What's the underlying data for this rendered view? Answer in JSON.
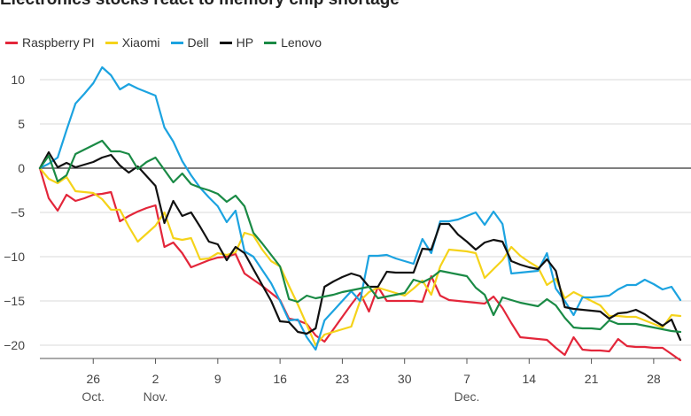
{
  "chart_data": {
    "type": "line",
    "title": "Electronics stocks react to memory chip shortage",
    "xlabel": "",
    "ylabel": "",
    "ylim": [
      -21.5,
      12
    ],
    "yticks": [
      10,
      5,
      0,
      -5,
      -10,
      -15,
      -20
    ],
    "xlim": [
      "2021-10-20",
      "2021-12-31"
    ],
    "xticks": [
      {
        "date": "2021-10-26",
        "label": "26",
        "month": "Oct."
      },
      {
        "date": "2021-11-02",
        "label": "2",
        "month": "Nov."
      },
      {
        "date": "2021-11-09",
        "label": "9",
        "month": ""
      },
      {
        "date": "2021-11-16",
        "label": "16",
        "month": ""
      },
      {
        "date": "2021-11-23",
        "label": "23",
        "month": ""
      },
      {
        "date": "2021-11-30",
        "label": "30",
        "month": ""
      },
      {
        "date": "2021-12-07",
        "label": "7",
        "month": "Dec."
      },
      {
        "date": "2021-12-14",
        "label": "14",
        "month": ""
      },
      {
        "date": "2021-12-21",
        "label": "21",
        "month": ""
      },
      {
        "date": "2021-12-28",
        "label": "28",
        "month": ""
      }
    ],
    "legend_position": "top-left",
    "grid": "horizontal",
    "x": [
      "2021-10-20",
      "2021-10-21",
      "2021-10-22",
      "2021-10-23",
      "2021-10-24",
      "2021-10-25",
      "2021-10-26",
      "2021-10-27",
      "2021-10-28",
      "2021-10-29",
      "2021-10-30",
      "2021-10-31",
      "2021-11-01",
      "2021-11-02",
      "2021-11-03",
      "2021-11-04",
      "2021-11-05",
      "2021-11-06",
      "2021-11-07",
      "2021-11-08",
      "2021-11-09",
      "2021-11-10",
      "2021-11-11",
      "2021-11-12",
      "2021-11-13",
      "2021-11-14",
      "2021-11-15",
      "2021-11-16",
      "2021-11-17",
      "2021-11-18",
      "2021-11-19",
      "2021-11-20",
      "2021-11-21",
      "2021-11-22",
      "2021-11-23",
      "2021-11-24",
      "2021-11-25",
      "2021-11-26",
      "2021-11-27",
      "2021-11-28",
      "2021-11-29",
      "2021-11-30",
      "2021-12-01",
      "2021-12-02",
      "2021-12-03",
      "2021-12-04",
      "2021-12-05",
      "2021-12-06",
      "2021-12-07",
      "2021-12-08",
      "2021-12-09",
      "2021-12-10",
      "2021-12-11",
      "2021-12-12",
      "2021-12-13",
      "2021-12-14",
      "2021-12-15",
      "2021-12-16",
      "2021-12-17",
      "2021-12-18",
      "2021-12-19",
      "2021-12-20",
      "2021-12-21",
      "2021-12-22",
      "2021-12-23",
      "2021-12-24",
      "2021-12-25",
      "2021-12-26",
      "2021-12-27",
      "2021-12-28",
      "2021-12-29",
      "2021-12-30",
      "2021-12-31"
    ],
    "series": [
      {
        "name": "Raspberry PI",
        "color": "#e3263a",
        "values": [
          0,
          -3.4,
          -4.8,
          -3.0,
          -3.7,
          -3.4,
          -3.0,
          -2.9,
          -2.7,
          -6.0,
          -5.4,
          -4.9,
          -4.5,
          -4.2,
          -8.9,
          -8.4,
          -9.6,
          -11.2,
          -10.8,
          -10.4,
          -10.1,
          -10.0,
          -9.7,
          -11.9,
          -12.6,
          -13.3,
          -14.1,
          -14.9,
          -17.0,
          -17.2,
          -17.6,
          -18.9,
          -19.6,
          -18.2,
          -16.8,
          -15.4,
          -14.1,
          -16.2,
          -13.4,
          -15.0,
          -15.0,
          -15.0,
          -15.0,
          -15.1,
          -12.2,
          -14.4,
          -14.9,
          -15.0,
          -15.1,
          -15.2,
          -15.3,
          -14.5,
          -15.8,
          -17.5,
          -19.1,
          -19.2,
          -19.3,
          -19.4,
          -20.3,
          -21.1,
          -19.1,
          -20.5,
          -20.6,
          -20.6,
          -20.7,
          -19.3,
          -20.1,
          -20.2,
          -20.2,
          -20.3,
          -20.3,
          -21.0,
          -21.7
        ]
      },
      {
        "name": "Xiaomi",
        "color": "#f5d31a",
        "values": [
          0,
          -1.2,
          -1.7,
          -1.0,
          -2.6,
          -2.7,
          -2.8,
          -3.5,
          -4.7,
          -4.7,
          -6.6,
          -8.3,
          -7.4,
          -6.5,
          -5.0,
          -7.9,
          -8.1,
          -7.9,
          -10.3,
          -10.2,
          -9.6,
          -9.8,
          -9.5,
          -7.3,
          -7.6,
          -9.2,
          -10.5,
          -11.1,
          -13.3,
          -15.4,
          -17.7,
          -20.0,
          -18.8,
          -18.5,
          -18.2,
          -17.9,
          -15.0,
          -14.0,
          -13.5,
          -13.8,
          -14.1,
          -14.4,
          -13.6,
          -12.7,
          -14.3,
          -11.1,
          -9.2,
          -9.3,
          -9.4,
          -9.6,
          -12.4,
          -11.4,
          -10.4,
          -8.9,
          -9.9,
          -10.6,
          -11.2,
          -13.2,
          -12.5,
          -14.7,
          -14.0,
          -14.5,
          -15.0,
          -15.5,
          -16.7,
          -16.7,
          -16.8,
          -16.8,
          -17.2,
          -17.6,
          -18.0,
          -16.6,
          -16.7
        ]
      },
      {
        "name": "Dell",
        "color": "#1ca3e0",
        "values": [
          0,
          0.5,
          1.2,
          4.3,
          7.3,
          8.4,
          9.6,
          11.4,
          10.5,
          8.9,
          9.5,
          9.0,
          8.6,
          8.2,
          4.6,
          3.0,
          0.8,
          -0.8,
          -2.2,
          -3.3,
          -4.3,
          -6.1,
          -4.8,
          -9.4,
          -10.0,
          -11.5,
          -13.0,
          -15.0,
          -17.2,
          -17.1,
          -19.1,
          -20.5,
          -17.2,
          -16.1,
          -15.0,
          -13.9,
          -15.0,
          -9.9,
          -9.9,
          -9.8,
          -10.2,
          -10.5,
          -10.8,
          -8.0,
          -9.6,
          -6.0,
          -6.0,
          -5.8,
          -5.4,
          -5.0,
          -6.4,
          -4.9,
          -6.3,
          -11.9,
          -11.8,
          -11.7,
          -11.6,
          -9.6,
          -13.6,
          -15.0,
          -16.6,
          -14.6,
          -14.6,
          -14.5,
          -14.4,
          -13.7,
          -13.2,
          -13.2,
          -12.6,
          -13.1,
          -13.7,
          -13.4,
          -14.9
        ]
      },
      {
        "name": "HP",
        "color": "#111111",
        "values": [
          0,
          1.8,
          0.1,
          0.6,
          0.1,
          0.4,
          0.7,
          1.2,
          1.5,
          0.3,
          -0.5,
          0.2,
          -0.9,
          -2.0,
          -6.2,
          -3.7,
          -5.4,
          -5.0,
          -6.6,
          -8.3,
          -8.6,
          -10.4,
          -8.9,
          -9.6,
          -11.4,
          -13.2,
          -15.0,
          -17.3,
          -17.4,
          -18.5,
          -18.7,
          -18.1,
          -13.4,
          -12.8,
          -12.3,
          -11.9,
          -12.2,
          -13.4,
          -13.4,
          -11.7,
          -11.8,
          -11.8,
          -11.8,
          -9.1,
          -9.2,
          -6.3,
          -6.3,
          -7.5,
          -8.3,
          -9.2,
          -8.4,
          -8.1,
          -8.3,
          -10.5,
          -10.9,
          -11.2,
          -11.4,
          -10.3,
          -11.6,
          -15.7,
          -15.9,
          -16.0,
          -16.1,
          -16.2,
          -17.0,
          -16.4,
          -16.3,
          -16.0,
          -16.5,
          -17.2,
          -17.8,
          -17.1,
          -19.4
        ]
      },
      {
        "name": "Lenovo",
        "color": "#1a8a45",
        "values": [
          0,
          1.4,
          -1.5,
          -0.8,
          1.6,
          2.1,
          2.6,
          3.1,
          1.9,
          1.9,
          1.6,
          -0.1,
          0.7,
          1.2,
          -0.2,
          -1.6,
          -0.6,
          -1.8,
          -2.2,
          -2.5,
          -2.9,
          -3.8,
          -3.1,
          -4.3,
          -7.3,
          -8.5,
          -9.8,
          -11.1,
          -14.8,
          -15.1,
          -14.4,
          -14.7,
          -14.5,
          -14.3,
          -14.0,
          -13.8,
          -13.6,
          -13.4,
          -14.7,
          -14.5,
          -14.3,
          -14.1,
          -12.6,
          -12.9,
          -12.4,
          -11.6,
          -11.8,
          -12.0,
          -12.2,
          -13.5,
          -14.3,
          -16.6,
          -14.6,
          -14.9,
          -15.2,
          -15.4,
          -15.6,
          -14.8,
          -15.5,
          -16.9,
          -18.0,
          -18.1,
          -18.1,
          -18.2,
          -17.2,
          -17.6,
          -17.6,
          -17.6,
          -17.8,
          -18.0,
          -18.2,
          -18.4,
          -18.5
        ]
      }
    ]
  }
}
